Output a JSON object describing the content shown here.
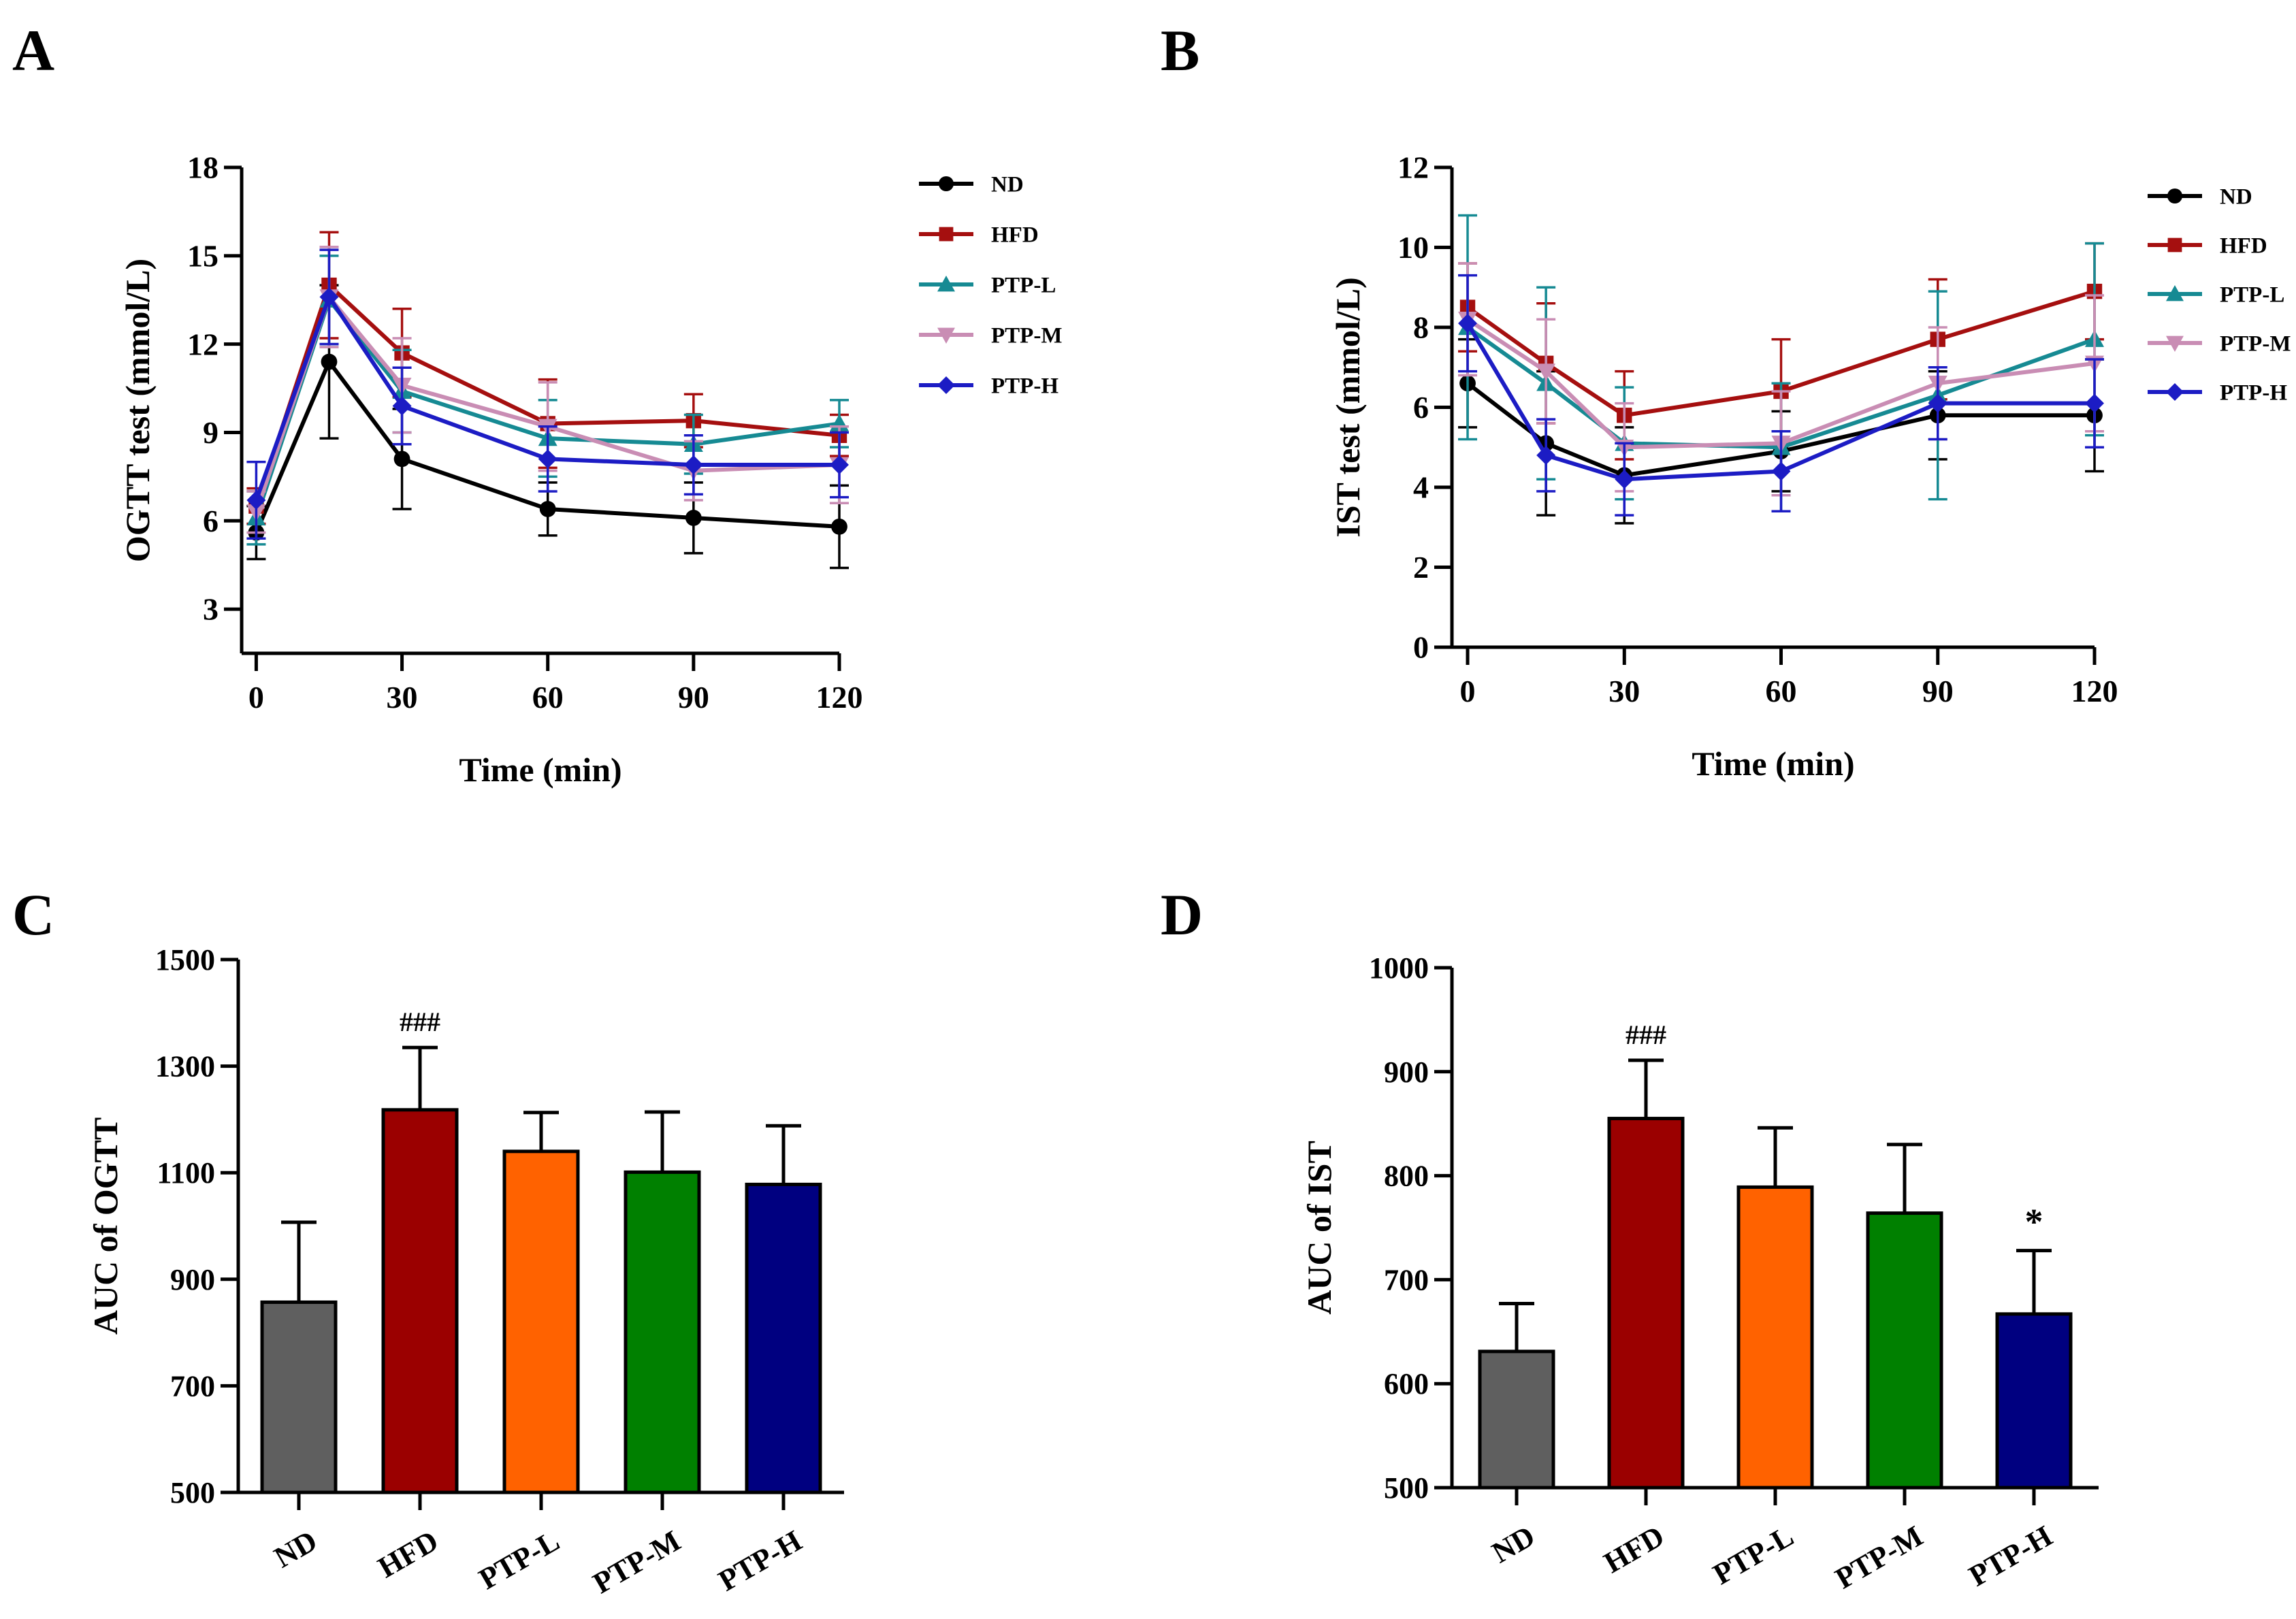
{
  "panel_labels": [
    "A",
    "B",
    "C",
    "D"
  ],
  "colors": {
    "ND": "#000000",
    "HFD": "#a50f0f",
    "PTP-L": "#168a93",
    "PTP-M": "#c98db4",
    "PTP-H": "#1c1cc4",
    "bar_ND": "#5f5f5f",
    "bar_HFD": "#9b0000",
    "bar_PTP-L": "#ff6200",
    "bar_PTP-M": "#008000",
    "bar_PTP-H": "#000080"
  },
  "chart_data": [
    {
      "panel": "A",
      "type": "line",
      "title": "",
      "xlabel": "Time (min)",
      "ylabel": "OGTT test (mmol/L)",
      "xlim": [
        -3,
        120
      ],
      "ylim": [
        1.5,
        18
      ],
      "xticks": [
        0,
        30,
        60,
        90,
        120
      ],
      "yticks": [
        3,
        6,
        9,
        12,
        15,
        18
      ],
      "legend": "right",
      "x": [
        0,
        15,
        30,
        60,
        90,
        120
      ],
      "series": [
        {
          "name": "ND",
          "marker": "circle",
          "values": [
            5.6,
            11.4,
            8.1,
            6.4,
            6.1,
            5.8
          ],
          "errors": [
            0.9,
            2.6,
            1.7,
            0.9,
            1.2,
            1.4
          ]
        },
        {
          "name": "HFD",
          "marker": "square",
          "values": [
            6.5,
            14.0,
            11.7,
            9.3,
            9.4,
            8.9
          ],
          "errors": [
            0.6,
            1.8,
            1.5,
            1.5,
            0.9,
            0.7
          ]
        },
        {
          "name": "PTP-L",
          "marker": "triangle",
          "values": [
            6.1,
            13.5,
            10.4,
            8.8,
            8.6,
            9.3
          ],
          "errors": [
            0.9,
            1.5,
            1.4,
            1.3,
            1.0,
            0.8
          ]
        },
        {
          "name": "PTP-M",
          "marker": "triangle-down",
          "values": [
            6.3,
            13.6,
            10.6,
            9.2,
            7.7,
            7.9
          ],
          "errors": [
            0.7,
            1.7,
            1.6,
            1.5,
            1.0,
            1.3
          ]
        },
        {
          "name": "PTP-H",
          "marker": "diamond",
          "values": [
            6.7,
            13.6,
            9.9,
            8.1,
            7.9,
            7.9
          ],
          "errors": [
            1.3,
            1.6,
            1.3,
            1.1,
            1.0,
            1.1
          ]
        }
      ]
    },
    {
      "panel": "B",
      "type": "line",
      "title": "",
      "xlabel": "Time (min)",
      "ylabel": "IST test (mmol/L)",
      "xlim": [
        -3,
        120
      ],
      "ylim": [
        0,
        12
      ],
      "xticks": [
        0,
        30,
        60,
        90,
        120
      ],
      "yticks": [
        0,
        2,
        4,
        6,
        8,
        10,
        12
      ],
      "legend": "right",
      "x": [
        0,
        15,
        30,
        60,
        90,
        120
      ],
      "series": [
        {
          "name": "ND",
          "marker": "circle",
          "values": [
            6.6,
            5.1,
            4.3,
            4.9,
            5.8,
            5.8
          ],
          "errors": [
            1.1,
            1.8,
            1.2,
            1.0,
            1.1,
            1.4
          ]
        },
        {
          "name": "HFD",
          "marker": "square",
          "values": [
            8.5,
            7.1,
            5.8,
            6.4,
            7.7,
            8.9
          ],
          "errors": [
            1.1,
            1.5,
            1.1,
            1.3,
            1.5,
            1.2
          ]
        },
        {
          "name": "PTP-L",
          "marker": "triangle",
          "values": [
            8.0,
            6.6,
            5.1,
            5.0,
            6.3,
            7.7
          ],
          "errors": [
            2.8,
            2.4,
            1.4,
            1.6,
            2.6,
            2.4
          ]
        },
        {
          "name": "PTP-M",
          "marker": "triangle-down",
          "values": [
            8.2,
            6.9,
            5.0,
            5.1,
            6.6,
            7.1
          ],
          "errors": [
            1.4,
            1.3,
            1.1,
            1.3,
            1.4,
            1.7
          ]
        },
        {
          "name": "PTP-H",
          "marker": "diamond",
          "values": [
            8.1,
            4.8,
            4.2,
            4.4,
            6.1,
            6.1
          ],
          "errors": [
            1.2,
            0.9,
            0.9,
            1.0,
            0.9,
            1.1
          ]
        }
      ]
    },
    {
      "panel": "C",
      "type": "bar",
      "title": "",
      "xlabel": "",
      "ylabel": "AUC of  OGTT",
      "ylim": [
        500,
        1500
      ],
      "yticks": [
        500,
        700,
        900,
        1100,
        1300,
        1500
      ],
      "categories": [
        "ND",
        "HFD",
        "PTP-L",
        "PTP-M",
        "PTP-H"
      ],
      "values": [
        857,
        1218,
        1140,
        1101,
        1078
      ],
      "errors": [
        150,
        117,
        73,
        113,
        110
      ],
      "annotations": [
        "",
        "###",
        "",
        "",
        ""
      ]
    },
    {
      "panel": "D",
      "type": "bar",
      "title": "",
      "xlabel": "",
      "ylabel": "AUC of  IST",
      "ylim": [
        500,
        1000
      ],
      "yticks": [
        500,
        600,
        700,
        800,
        900,
        1000
      ],
      "categories": [
        "ND",
        "HFD",
        "PTP-L",
        "PTP-M",
        "PTP-H"
      ],
      "values": [
        631,
        855,
        789,
        764,
        667
      ],
      "errors": [
        46,
        56,
        57,
        66,
        61
      ],
      "annotations": [
        "",
        "###",
        "",
        "",
        "*"
      ]
    }
  ]
}
